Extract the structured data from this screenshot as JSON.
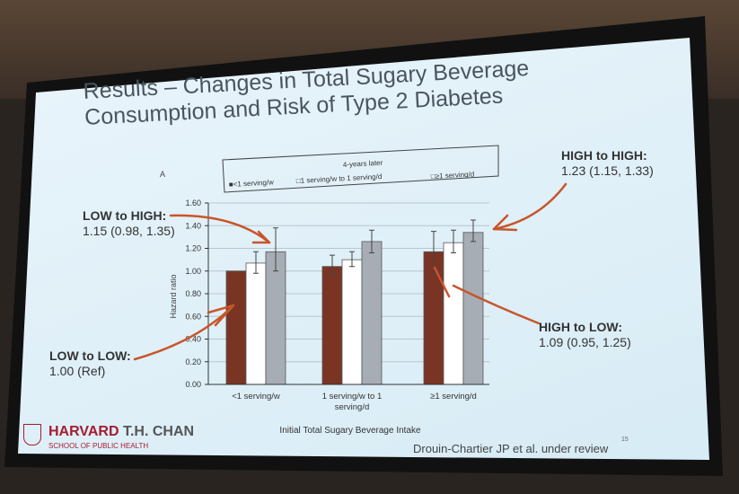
{
  "slide": {
    "title_line1": "Results – Changes in Total Sugary Beverage",
    "title_line2": "Consumption and Risk of Type 2 Diabetes",
    "logo_name": "HARVARD",
    "logo_name2": "T.H. CHAN",
    "logo_sub": "SCHOOL OF PUBLIC HEALTH",
    "citation": "Drouin-Chartier JP et al. under review",
    "page_number": "15"
  },
  "annotations": [
    {
      "label": "LOW to HIGH:",
      "value": "1.15 (0.98, 1.35)"
    },
    {
      "label": "HIGH to HIGH:",
      "value": "1.23 (1.15, 1.33)"
    },
    {
      "label": "LOW to LOW:",
      "value": "1.00 (Ref)"
    },
    {
      "label": "HIGH to LOW:",
      "value": "1.09 (0.95, 1.25)"
    }
  ],
  "colors": {
    "dark": "#7a3424",
    "white": "#ffffff",
    "gray": "#a7adb4",
    "arrow": "#c8552a"
  },
  "chart_data": {
    "type": "bar",
    "panel_label": "A",
    "legend_title": "4-years later",
    "legend_position": "top",
    "categories": [
      "<1 serving/w",
      "1 serving/w to 1 serving/d",
      "≥1 serving/d"
    ],
    "category_lines": [
      [
        "<1 serving/w"
      ],
      [
        "1 serving/w to 1",
        "serving/d"
      ],
      [
        "≥1 serving/d"
      ]
    ],
    "xlabel": "Initial Total Sugary Beverage Intake",
    "ylabel": "Hazard ratio",
    "ylim": [
      0,
      1.6
    ],
    "yticks": [
      "0.00",
      "0.20",
      "0.40",
      "0.60",
      "0.80",
      "1.00",
      "1.20",
      "1.40",
      "1.60"
    ],
    "grid": true,
    "series": [
      {
        "name": "<1 serving/w",
        "legend": "■<1 serving/w",
        "values": [
          1.0,
          1.04,
          1.17
        ],
        "ci_low": [
          null,
          0.98,
          0.98
        ],
        "ci_high": [
          null,
          1.14,
          1.35
        ]
      },
      {
        "name": "1 serving/w to 1 serving/d",
        "legend": "□1 serving/w to 1 serving/d",
        "values": [
          1.07,
          1.1,
          1.25
        ],
        "ci_low": [
          0.98,
          1.04,
          1.16
        ],
        "ci_high": [
          1.17,
          1.17,
          1.36
        ]
      },
      {
        "name": "≥1 serving/d",
        "legend": "□≥1 serving/d",
        "values": [
          1.17,
          1.26,
          1.34
        ],
        "ci_low": [
          1.0,
          1.16,
          1.26
        ],
        "ci_high": [
          1.38,
          1.36,
          1.45
        ]
      }
    ]
  }
}
